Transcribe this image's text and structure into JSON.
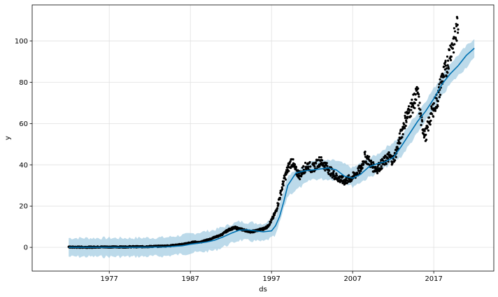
{
  "chart_data": {
    "type": "line",
    "xlabel": "ds",
    "ylabel": "y",
    "xlim": [
      1967.5,
      2024.4
    ],
    "ylim": [
      -11.5,
      117.5
    ],
    "x_ticks": [
      1977,
      1987,
      1997,
      2007,
      2017
    ],
    "x_tick_labels": [
      "1977",
      "1987",
      "1997",
      "2007",
      "2017"
    ],
    "y_ticks": [
      0,
      20,
      40,
      60,
      80,
      100
    ],
    "y_tick_labels": [
      "0",
      "20",
      "40",
      "60",
      "80",
      "100"
    ],
    "grid": true,
    "colors": {
      "forecast": "#0072B2",
      "interval": "#a6cee3",
      "observed": "#000000",
      "grid": "#e0e0e0",
      "frame": "#000000"
    },
    "series": [
      {
        "kind": "observed-points",
        "x": [
          1972.0,
          1972.5,
          1973.0,
          1973.5,
          1974.0,
          1974.5,
          1975.0,
          1975.5,
          1976.0,
          1976.5,
          1977.0,
          1977.5,
          1978.0,
          1978.5,
          1979.0,
          1979.5,
          1980.0,
          1980.5,
          1981.0,
          1981.5,
          1982.0,
          1982.5,
          1983.0,
          1983.5,
          1984.0,
          1984.5,
          1985.0,
          1985.5,
          1986.0,
          1986.5,
          1987.0,
          1987.5,
          1988.0,
          1988.5,
          1989.0,
          1989.5,
          1990.0,
          1990.5,
          1991.0,
          1991.5,
          1992.0,
          1992.5,
          1993.0,
          1993.5,
          1994.0,
          1994.5,
          1995.0,
          1995.5,
          1996.0,
          1996.5,
          1997.0,
          1997.5,
          1998.0,
          1998.5,
          1999.0,
          1999.5,
          2000.0,
          2000.5,
          2001.0,
          2001.5,
          2002.0,
          2002.5,
          2003.0,
          2003.5,
          2004.0,
          2004.5,
          2005.0,
          2005.5,
          2006.0,
          2006.5,
          2007.0,
          2007.5,
          2008.0,
          2008.5,
          2009.0,
          2009.5,
          2010.0,
          2010.5,
          2011.0,
          2011.5,
          2012.0,
          2012.5,
          2013.0,
          2013.5,
          2014.0,
          2014.5,
          2015.0,
          2015.5,
          2016.0,
          2016.5,
          2017.0,
          2017.5,
          2018.0,
          2018.5,
          2019.0,
          2019.5,
          2020.0
        ],
        "y": [
          0.1,
          0.1,
          0.1,
          0.1,
          0.1,
          0.1,
          0.1,
          0.2,
          0.2,
          0.2,
          0.2,
          0.2,
          0.2,
          0.2,
          0.2,
          0.3,
          0.3,
          0.3,
          0.3,
          0.4,
          0.4,
          0.5,
          0.5,
          0.6,
          0.7,
          0.8,
          1.0,
          1.2,
          1.5,
          1.8,
          2.2,
          2.6,
          2.5,
          2.8,
          3.5,
          4.0,
          5.0,
          5.5,
          6.5,
          8.0,
          9.0,
          9.5,
          9.0,
          8.5,
          8.0,
          7.5,
          8.0,
          8.5,
          9.0,
          10.0,
          13.0,
          17.0,
          24.0,
          32.0,
          38.0,
          42.0,
          37.0,
          35.0,
          38.0,
          40.0,
          38.0,
          40.0,
          42.0,
          40.0,
          38.0,
          36.0,
          34.0,
          33.0,
          32.0,
          33.0,
          34.0,
          36.0,
          38.0,
          44.0,
          42.0,
          39.0,
          38.0,
          40.0,
          42.0,
          44.0,
          42.0,
          48.0,
          55.0,
          62.0,
          66.0,
          70.0,
          75.0,
          60.0,
          54.0,
          62.0,
          68.0,
          72.0,
          82.0,
          86.0,
          95.0,
          100.0,
          108.0
        ]
      },
      {
        "kind": "forecast-line",
        "x": [
          1972.0,
          1974.0,
          1976.0,
          1978.0,
          1980.0,
          1982.0,
          1984.0,
          1986.0,
          1987.0,
          1988.0,
          1989.0,
          1990.0,
          1991.0,
          1992.0,
          1993.0,
          1994.0,
          1995.0,
          1996.0,
          1997.0,
          1997.5,
          1998.0,
          1998.5,
          1999.0,
          2000.0,
          2001.0,
          2002.0,
          2003.0,
          2004.0,
          2005.0,
          2006.0,
          2007.0,
          2008.0,
          2009.0,
          2010.0,
          2011.0,
          2012.0,
          2013.0,
          2014.0,
          2015.0,
          2016.0,
          2017.0,
          2018.0,
          2019.0,
          2020.0,
          2021.0,
          2022.0
        ],
        "y": [
          0.0,
          0.0,
          0.0,
          0.0,
          0.0,
          0.1,
          0.2,
          0.8,
          1.5,
          2.0,
          2.6,
          3.5,
          5.0,
          6.8,
          8.3,
          8.5,
          8.0,
          7.5,
          8.0,
          10.5,
          15.0,
          22.0,
          30.0,
          36.0,
          37.0,
          37.5,
          38.0,
          38.5,
          37.5,
          34.5,
          33.5,
          35.5,
          39.0,
          40.5,
          41.5,
          43.5,
          49.0,
          55.0,
          61.0,
          66.0,
          72.0,
          79.0,
          84.0,
          88.0,
          93.0,
          96.5
        ]
      },
      {
        "kind": "interval-upper",
        "x": [
          1972.0,
          1976.0,
          1980.0,
          1984.0,
          1987.0,
          1990.0,
          1993.0,
          1996.0,
          1997.5,
          1999.0,
          2002.0,
          2005.0,
          2007.0,
          2010.0,
          2013.0,
          2016.0,
          2019.0,
          2022.0
        ],
        "y": [
          4.5,
          4.5,
          4.5,
          4.8,
          6.5,
          8.5,
          12.5,
          11.5,
          14.5,
          34.5,
          42.0,
          42.0,
          38.5,
          45.0,
          54.0,
          71.0,
          89.0,
          101.5
        ]
      },
      {
        "kind": "interval-lower",
        "x": [
          1972.0,
          1976.0,
          1980.0,
          1984.0,
          1987.0,
          1990.0,
          1993.0,
          1996.0,
          1997.5,
          1999.0,
          2002.0,
          2005.0,
          2007.0,
          2010.0,
          2013.0,
          2016.0,
          2019.0,
          2022.0
        ],
        "y": [
          -4.5,
          -4.5,
          -4.5,
          -4.2,
          -2.8,
          -1.5,
          3.5,
          2.8,
          5.5,
          25.0,
          33.0,
          33.0,
          29.5,
          36.0,
          44.0,
          61.0,
          79.0,
          91.5
        ]
      }
    ]
  }
}
